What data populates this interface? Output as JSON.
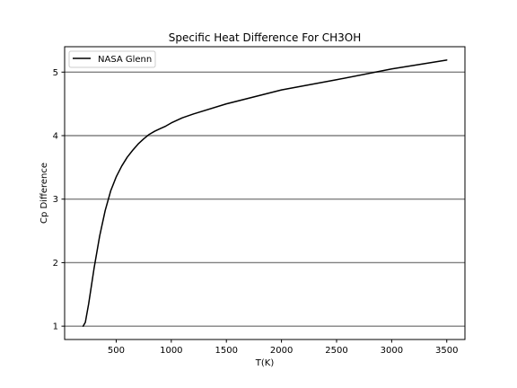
{
  "chart_data": {
    "type": "line",
    "title": "Specific Heat Difference For CH3OH",
    "xlabel": "T(K)",
    "ylabel": "Cp Difference",
    "xlim": [
      32,
      3665
    ],
    "ylim": [
      0.79,
      5.4
    ],
    "x_ticks": [
      500,
      1000,
      1500,
      2000,
      2500,
      3000,
      3500
    ],
    "x_tick_labels": [
      "500",
      "1000",
      "1500",
      "2000",
      "2500",
      "3000",
      "3500"
    ],
    "y_ticks": [
      1,
      2,
      3,
      4,
      5
    ],
    "y_tick_labels": [
      "1",
      "2",
      "3",
      "4",
      "5"
    ],
    "grid": "horizontal lines at y ticks",
    "legend": {
      "placement": "upper-left",
      "entries": [
        "NASA Glenn"
      ]
    },
    "series": [
      {
        "name": "NASA Glenn",
        "color": "#000000",
        "x": [
          200,
          220,
          250,
          300,
          350,
          400,
          450,
          500,
          550,
          600,
          650,
          700,
          750,
          800,
          850,
          900,
          950,
          1000,
          1100,
          1200,
          1500,
          2000,
          2500,
          3000,
          3500
        ],
        "y": [
          1.0,
          1.06,
          1.35,
          1.92,
          2.42,
          2.82,
          3.13,
          3.35,
          3.52,
          3.66,
          3.77,
          3.87,
          3.95,
          4.02,
          4.07,
          4.11,
          4.15,
          4.2,
          4.28,
          4.34,
          4.5,
          4.72,
          4.88,
          5.05,
          5.19
        ]
      }
    ]
  }
}
